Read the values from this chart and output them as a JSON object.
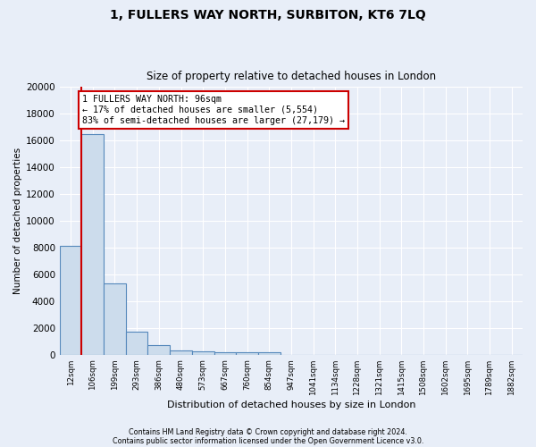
{
  "title1": "1, FULLERS WAY NORTH, SURBITON, KT6 7LQ",
  "title2": "Size of property relative to detached houses in London",
  "xlabel": "Distribution of detached houses by size in London",
  "ylabel": "Number of detached properties",
  "categories": [
    "12sqm",
    "106sqm",
    "199sqm",
    "293sqm",
    "386sqm",
    "480sqm",
    "573sqm",
    "667sqm",
    "760sqm",
    "854sqm",
    "947sqm",
    "1041sqm",
    "1134sqm",
    "1228sqm",
    "1321sqm",
    "1415sqm",
    "1508sqm",
    "1602sqm",
    "1695sqm",
    "1789sqm",
    "1882sqm"
  ],
  "values": [
    8100,
    16500,
    5300,
    1750,
    700,
    300,
    230,
    200,
    180,
    150,
    0,
    0,
    0,
    0,
    0,
    0,
    0,
    0,
    0,
    0,
    0
  ],
  "bar_color": "#ccdcec",
  "bar_edge_color": "#5588bb",
  "annotation_title": "1 FULLERS WAY NORTH: 96sqm",
  "annotation_line1": "← 17% of detached houses are smaller (5,554)",
  "annotation_line2": "83% of semi-detached houses are larger (27,179) →",
  "annotation_box_color": "#ffffff",
  "annotation_box_edge": "#cc0000",
  "vline_color": "#cc0000",
  "footer1": "Contains HM Land Registry data © Crown copyright and database right 2024.",
  "footer2": "Contains public sector information licensed under the Open Government Licence v3.0.",
  "ylim": [
    0,
    20000
  ],
  "bg_color": "#e8eef8",
  "grid_color": "#ffffff",
  "yticks": [
    0,
    2000,
    4000,
    6000,
    8000,
    10000,
    12000,
    14000,
    16000,
    18000,
    20000
  ]
}
